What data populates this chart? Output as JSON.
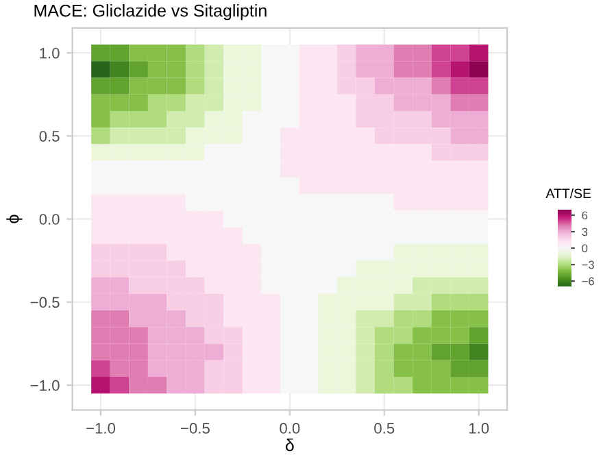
{
  "chart_data": {
    "type": "heatmap",
    "title": "MACE: Gliclazide vs Sitagliptin",
    "xlabel": "δ",
    "ylabel": "ϕ",
    "clabel": "ATT/SE",
    "x": [
      -1.0,
      -0.9,
      -0.8,
      -0.7,
      -0.6,
      -0.5,
      -0.4,
      -0.3,
      -0.2,
      -0.1,
      0.0,
      0.1,
      0.2,
      0.3,
      0.4,
      0.5,
      0.6,
      0.7,
      0.8,
      0.9,
      1.0
    ],
    "y": [
      1.0,
      0.9,
      0.8,
      0.7,
      0.6,
      0.5,
      0.4,
      0.3,
      0.2,
      0.1,
      0.0,
      -0.1,
      -0.2,
      -0.3,
      -0.4,
      -0.5,
      -0.6,
      -0.7,
      -0.8,
      -0.9,
      -1.0
    ],
    "cells": [
      [
        -5,
        -5,
        -4,
        -4,
        -4,
        -3,
        -2,
        -1,
        -1,
        0,
        0,
        1,
        1,
        2,
        3,
        3,
        4,
        4,
        5,
        5,
        6
      ],
      [
        -7,
        -6,
        -5,
        -4,
        -4,
        -3,
        -2,
        -1,
        -1,
        0,
        0,
        1,
        1,
        2,
        3,
        3,
        4,
        4,
        5,
        6,
        7
      ],
      [
        -5,
        -5,
        -4,
        -4,
        -4,
        -3,
        -2,
        -1,
        -1,
        0,
        0,
        1,
        1,
        2,
        2,
        3,
        3,
        3,
        4,
        5,
        5
      ],
      [
        -4,
        -4,
        -4,
        -3,
        -3,
        -2,
        -2,
        -1,
        -1,
        0,
        0,
        1,
        1,
        1,
        2,
        2,
        3,
        3,
        3,
        4,
        4
      ],
      [
        -4,
        -3,
        -3,
        -3,
        -2,
        -2,
        -1,
        -1,
        0,
        0,
        0,
        1,
        1,
        1,
        2,
        2,
        2,
        2,
        3,
        3,
        3
      ],
      [
        -3,
        -2,
        -2,
        -2,
        -2,
        -1,
        -1,
        -1,
        0,
        0,
        1,
        1,
        1,
        1,
        1,
        2,
        2,
        2,
        2,
        3,
        3
      ],
      [
        -1,
        -1,
        -1,
        -1,
        -1,
        -1,
        0,
        0,
        0,
        0,
        1,
        1,
        1,
        1,
        1,
        1,
        1,
        1,
        2,
        2,
        2
      ],
      [
        0,
        0,
        0,
        0,
        0,
        0,
        0,
        0,
        0,
        0,
        1,
        1,
        1,
        1,
        1,
        1,
        1,
        1,
        1,
        1,
        1
      ],
      [
        0,
        0,
        0,
        0,
        0,
        0,
        0,
        0,
        0,
        0,
        0,
        1,
        1,
        1,
        1,
        1,
        1,
        1,
        1,
        1,
        1
      ],
      [
        1,
        1,
        1,
        1,
        1,
        0,
        0,
        0,
        0,
        0,
        0,
        0,
        0,
        0,
        0,
        0,
        1,
        1,
        1,
        1,
        1
      ],
      [
        1,
        1,
        1,
        1,
        1,
        1,
        1,
        0,
        0,
        0,
        0,
        0,
        0,
        0,
        0,
        0,
        0,
        0,
        0,
        0,
        0
      ],
      [
        1,
        1,
        1,
        1,
        1,
        1,
        1,
        1,
        0,
        0,
        0,
        0,
        0,
        0,
        0,
        0,
        0,
        0,
        0,
        0,
        0
      ],
      [
        2,
        2,
        2,
        2,
        1,
        1,
        1,
        1,
        1,
        0,
        0,
        0,
        0,
        0,
        0,
        0,
        -1,
        -1,
        -1,
        -1,
        -1
      ],
      [
        2,
        2,
        2,
        2,
        2,
        1,
        1,
        1,
        1,
        0,
        0,
        0,
        0,
        0,
        -1,
        -1,
        -1,
        -1,
        -1,
        -1,
        -1
      ],
      [
        3,
        3,
        2,
        2,
        2,
        2,
        1,
        1,
        1,
        0,
        0,
        0,
        0,
        -1,
        -1,
        -1,
        -1,
        -2,
        -2,
        -2,
        -2
      ],
      [
        3,
        3,
        3,
        3,
        2,
        2,
        2,
        1,
        1,
        1,
        0,
        0,
        -1,
        -1,
        -1,
        -1,
        -2,
        -2,
        -3,
        -3,
        -3
      ],
      [
        4,
        4,
        3,
        3,
        3,
        2,
        2,
        1,
        1,
        1,
        0,
        0,
        -1,
        -1,
        -2,
        -2,
        -3,
        -3,
        -4,
        -4,
        -4
      ],
      [
        4,
        4,
        4,
        3,
        3,
        3,
        2,
        2,
        1,
        1,
        0,
        0,
        -1,
        -1,
        -2,
        -3,
        -3,
        -4,
        -4,
        -4,
        -5
      ],
      [
        4,
        4,
        4,
        3,
        3,
        3,
        3,
        2,
        1,
        1,
        0,
        0,
        -1,
        -1,
        -2,
        -3,
        -4,
        -4,
        -5,
        -5,
        -6
      ],
      [
        5,
        4,
        4,
        3,
        3,
        3,
        2,
        2,
        1,
        1,
        0,
        0,
        -1,
        -1,
        -2,
        -3,
        -4,
        -4,
        -4,
        -5,
        -5
      ],
      [
        6,
        5,
        4,
        4,
        3,
        3,
        2,
        2,
        1,
        1,
        0,
        0,
        -1,
        -1,
        -2,
        -3,
        -3,
        -4,
        -4,
        -4,
        -4
      ]
    ],
    "clim": [
      -7,
      7
    ],
    "cticks": [
      {
        "value": -6,
        "label": "−6"
      },
      {
        "value": -3,
        "label": "−3"
      },
      0,
      3,
      6
    ],
    "xlim": [
      -1.15,
      1.15
    ],
    "ylim": [
      -1.15,
      1.15
    ],
    "xticks": [
      {
        "value": -1.0,
        "label": "−1.0"
      },
      {
        "value": -0.5,
        "label": "−0.5"
      },
      {
        "value": 0.0,
        "label": "0.0"
      },
      {
        "value": 0.5,
        "label": "0.5"
      },
      {
        "value": 1.0,
        "label": "1.0"
      }
    ],
    "yticks": [
      {
        "value": -1.0,
        "label": "−1.0"
      },
      {
        "value": -0.5,
        "label": "−0.5"
      },
      {
        "value": 0.0,
        "label": "0.0"
      },
      {
        "value": 0.5,
        "label": "0.5"
      },
      {
        "value": 1.0,
        "label": "1.0"
      }
    ],
    "grid": true
  }
}
